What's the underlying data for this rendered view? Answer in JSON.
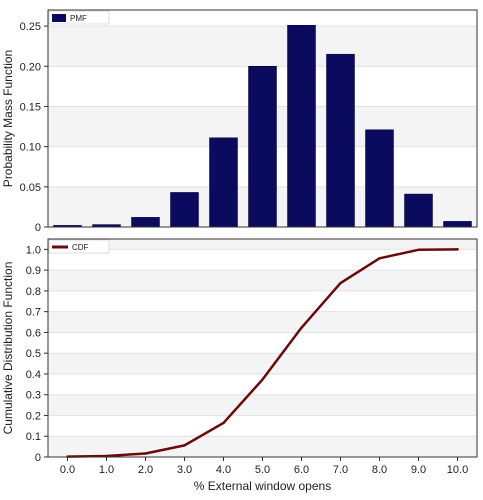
{
  "chart_data": [
    {
      "type": "bar",
      "legend": {
        "label": "PMF",
        "position": "top-left",
        "color": "#0a0a5e"
      },
      "ylabel": "Probability Mass Function",
      "xlabel": "",
      "grid": true,
      "ylim": [
        0,
        0.27
      ],
      "yticks": [
        0,
        0.05,
        0.1,
        0.15,
        0.2,
        0.25
      ],
      "ytick_labels": [
        "0",
        "0.05",
        "0.10",
        "0.15",
        "0.20",
        "0.25"
      ],
      "categories": [
        0,
        1,
        2,
        3,
        4,
        5,
        6,
        7,
        8,
        9,
        10
      ],
      "values": [
        0.002,
        0.003,
        0.012,
        0.043,
        0.111,
        0.2,
        0.251,
        0.215,
        0.121,
        0.041,
        0.007
      ],
      "bar_color": "#0a0a5e"
    },
    {
      "type": "line",
      "legend": {
        "label": "CDF",
        "position": "top-left",
        "color": "#6b0a0a"
      },
      "ylabel": "Cumulative Distribution Function",
      "xlabel": "% External window opens",
      "grid": true,
      "xlim": [
        -0.5,
        10.5
      ],
      "ylim": [
        0,
        1.05
      ],
      "xticks": [
        0,
        1,
        2,
        3,
        4,
        5,
        6,
        7,
        8,
        9,
        10
      ],
      "xtick_labels": [
        "0.0",
        "1.0",
        "2.0",
        "3.0",
        "4.0",
        "5.0",
        "6.0",
        "7.0",
        "8.0",
        "9.0",
        "10.0"
      ],
      "yticks": [
        0,
        0.1,
        0.2,
        0.3,
        0.4,
        0.5,
        0.6,
        0.7,
        0.8,
        0.9,
        1.0
      ],
      "ytick_labels": [
        "0",
        "0.1",
        "0.2",
        "0.3",
        "0.4",
        "0.5",
        "0.6",
        "0.7",
        "0.8",
        "0.9",
        "1.0"
      ],
      "x": [
        0,
        1,
        2,
        3,
        4,
        5,
        6,
        7,
        8,
        9,
        10
      ],
      "y": [
        0.002,
        0.005,
        0.017,
        0.056,
        0.164,
        0.373,
        0.623,
        0.838,
        0.957,
        0.998,
        1.0
      ],
      "line_color": "#6b0a0a"
    }
  ]
}
